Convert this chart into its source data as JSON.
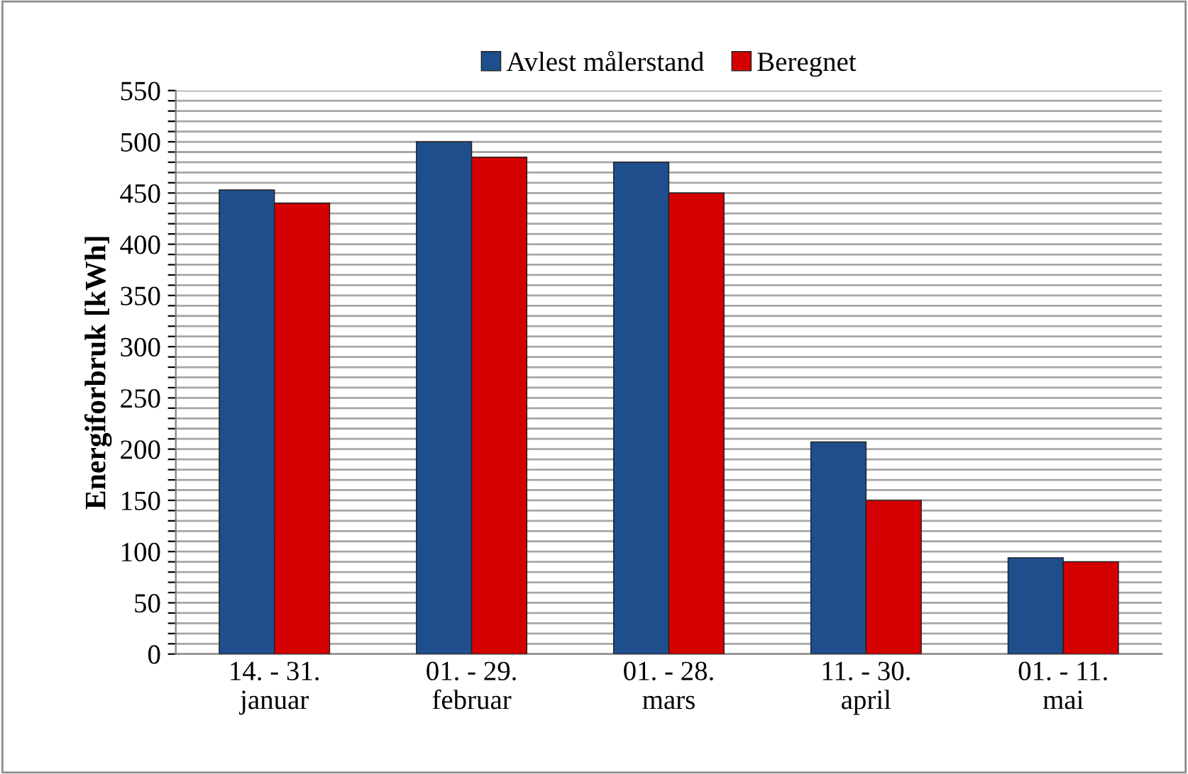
{
  "chart_data": {
    "type": "bar",
    "ylabel": "Energiforbruk [kWh]",
    "categories": [
      "14. - 31.\njanuar",
      "01. - 29.\nfebruar",
      "01. - 28.\nmars",
      "11. - 30.\napril",
      "01. - 11.\nmai"
    ],
    "series": [
      {
        "name": "Avlest målerstand",
        "color": "#1f4e8c",
        "values": [
          453,
          500,
          480,
          207,
          94
        ]
      },
      {
        "name": "Beregnet",
        "color": "#d40000",
        "values": [
          440,
          485,
          450,
          150,
          90
        ]
      }
    ],
    "ylim": [
      0,
      550
    ],
    "yticks": [
      0,
      {
        "value": 10,
        "label": null
      },
      {
        "value": 20,
        "label": null
      },
      {
        "value": 30,
        "label": null
      },
      {
        "value": 40,
        "label": null
      },
      50,
      {
        "value": 60,
        "label": null
      },
      {
        "value": 70,
        "label": null
      },
      {
        "value": 80,
        "label": null
      },
      {
        "value": 90,
        "label": null
      },
      100,
      {
        "value": 110,
        "label": null
      },
      {
        "value": 120,
        "label": null
      },
      {
        "value": 130,
        "label": null
      },
      {
        "value": 140,
        "label": null
      },
      150,
      {
        "value": 160,
        "label": null
      },
      {
        "value": 170,
        "label": null
      },
      {
        "value": 180,
        "label": null
      },
      {
        "value": 190,
        "label": null
      },
      200,
      {
        "value": 210,
        "label": null
      },
      {
        "value": 220,
        "label": null
      },
      {
        "value": 230,
        "label": null
      },
      {
        "value": 240,
        "label": null
      },
      250,
      {
        "value": 260,
        "label": null
      },
      {
        "value": 270,
        "label": null
      },
      {
        "value": 280,
        "label": null
      },
      {
        "value": 290,
        "label": null
      },
      300,
      {
        "value": 310,
        "label": null
      },
      {
        "value": 320,
        "label": null
      },
      {
        "value": 330,
        "label": null
      },
      {
        "value": 340,
        "label": null
      },
      350,
      {
        "value": 360,
        "label": null
      },
      {
        "value": 370,
        "label": null
      },
      {
        "value": 380,
        "label": null
      },
      {
        "value": 390,
        "label": null
      },
      400,
      {
        "value": 410,
        "label": null
      },
      {
        "value": 420,
        "label": null
      },
      {
        "value": 430,
        "label": null
      },
      {
        "value": 440,
        "label": null
      },
      450,
      {
        "value": 460,
        "label": null
      },
      {
        "value": 470,
        "label": null
      },
      {
        "value": 480,
        "label": null
      },
      {
        "value": 490,
        "label": null
      },
      500,
      {
        "value": 510,
        "label": null
      },
      {
        "value": 520,
        "label": null
      },
      {
        "value": 530,
        "label": null
      },
      {
        "value": 540,
        "label": null
      },
      550
    ],
    "grid": "y",
    "legend": "top"
  }
}
